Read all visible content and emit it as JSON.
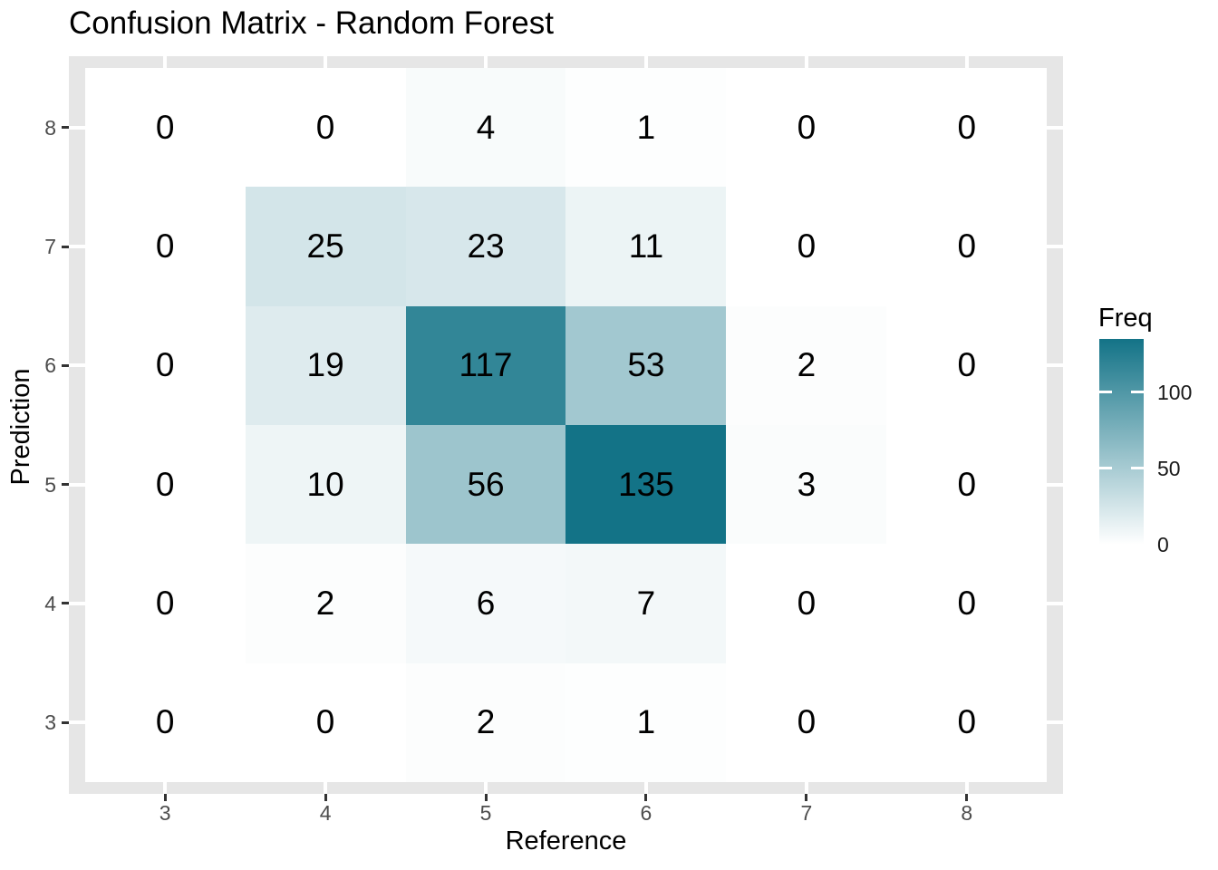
{
  "title": "Confusion Matrix - Random Forest",
  "chart_data": {
    "type": "heatmap",
    "title": "Confusion Matrix - Random Forest",
    "xlabel": "Reference",
    "ylabel": "Prediction",
    "x_categories": [
      "3",
      "4",
      "5",
      "6",
      "7",
      "8"
    ],
    "y_categories_top_to_bottom": [
      "8",
      "7",
      "6",
      "5",
      "4",
      "3"
    ],
    "rows_top_to_bottom": [
      {
        "prediction": "8",
        "values": [
          0,
          0,
          4,
          1,
          0,
          0
        ]
      },
      {
        "prediction": "7",
        "values": [
          0,
          25,
          23,
          11,
          0,
          0
        ]
      },
      {
        "prediction": "6",
        "values": [
          0,
          19,
          117,
          53,
          2,
          0
        ]
      },
      {
        "prediction": "5",
        "values": [
          0,
          10,
          56,
          135,
          3,
          0
        ]
      },
      {
        "prediction": "4",
        "values": [
          0,
          2,
          6,
          7,
          0,
          0
        ]
      },
      {
        "prediction": "3",
        "values": [
          0,
          0,
          2,
          1,
          0,
          0
        ]
      }
    ],
    "fill_scale": {
      "low_color": "#FFFFFF",
      "high_color": "#137387",
      "min": 0,
      "max": 135
    },
    "legend": {
      "title": "Freq",
      "ticks": [
        0,
        50,
        100
      ],
      "position": "right",
      "orientation": "vertical"
    },
    "style": {
      "panel_background": "#E6E6E6",
      "gridline_color": "#FFFFFF",
      "tick_mark_color": "#333333",
      "tick_label_color": "#4D4D4D",
      "grid": "major-only"
    }
  }
}
